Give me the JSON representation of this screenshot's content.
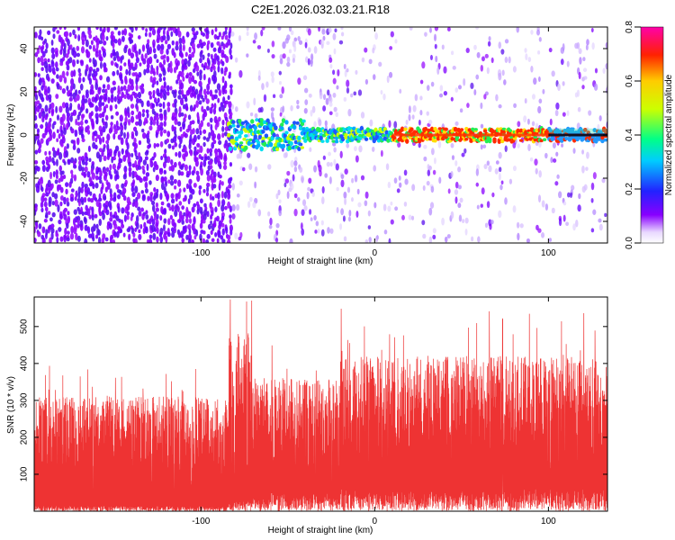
{
  "title": "C2E1.2026.032.03.21.R18",
  "chart_data": [
    {
      "type": "heatmap",
      "xlabel": "Height of straight line (km)",
      "ylabel": "Frequency (Hz)",
      "xlim": [
        -196,
        134
      ],
      "ylim": [
        -50,
        50
      ],
      "xticks": [
        -100,
        0,
        100
      ],
      "yticks": [
        -40,
        -20,
        0,
        20,
        40
      ],
      "colorbar": {
        "label": "Normalized spectral amplitude",
        "range": [
          0,
          0.8
        ],
        "ticks": [
          "0.0",
          "0.2",
          "0.4",
          "0.6",
          "0.8"
        ],
        "colormap": "rainbow (white → violet → blue → cyan → green → yellow → red → magenta)"
      },
      "features": {
        "dense_noise_region_km": [
          -196,
          -84
        ],
        "signal_band_hz": [
          -3,
          3
        ],
        "signal_start_km": -84,
        "strongest_signal_km": [
          10,
          100
        ]
      },
      "grid": false
    },
    {
      "type": "line",
      "series_color": "#ee3333",
      "xlabel": "Height of straight line (km)",
      "ylabel": "SNR (10 * v/v)",
      "xlim": [
        -196,
        134
      ],
      "ylim": [
        0,
        580
      ],
      "xticks": [
        -100,
        0,
        100
      ],
      "yticks": [
        100,
        200,
        300,
        400,
        500
      ],
      "envelope": [
        {
          "x_range_km": [
            -196,
            -84
          ],
          "low": 15,
          "high": 310,
          "peak": 400
        },
        {
          "x_range_km": [
            -84,
            -70
          ],
          "low": 30,
          "high": 480,
          "peak": 580
        },
        {
          "x_range_km": [
            -70,
            -20
          ],
          "low": 50,
          "high": 360,
          "peak": 460
        },
        {
          "x_range_km": [
            -20,
            134
          ],
          "low": 60,
          "high": 420,
          "peak": 560
        }
      ],
      "grid": false
    }
  ]
}
